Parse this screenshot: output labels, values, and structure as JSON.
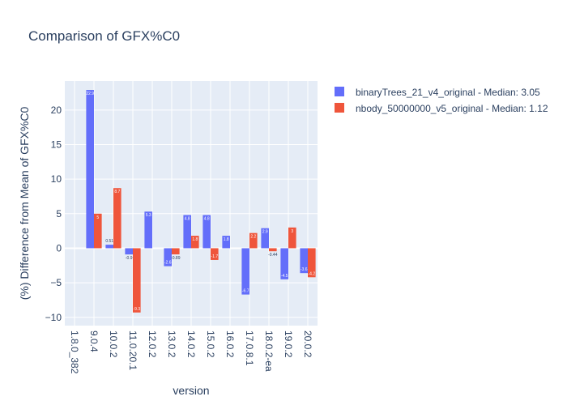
{
  "chart_data": {
    "type": "bar",
    "title": "Comparison of GFX%C0",
    "xlabel": "version",
    "ylabel": "(%) Difference from Mean of GFX%C0",
    "categories": [
      "1.8.0_382",
      "9.0.4",
      "10.0.2",
      "11.0.20.1",
      "12.0.2",
      "13.0.2",
      "14.0.2",
      "15.0.2",
      "16.0.2",
      "17.0.8.1",
      "18.0.2-ea",
      "19.0.2",
      "20.0.2"
    ],
    "ylim": [
      -11.2,
      24.2
    ],
    "yticks": [
      -10,
      -5,
      0,
      5,
      10,
      15,
      20
    ],
    "grid": true,
    "legend_position": "top-right",
    "series": [
      {
        "name": "binaryTrees_21_v4_original - Median: 3.05",
        "color": "#636efa",
        "values": [
          null,
          22.9,
          0.51,
          -0.9,
          5.3,
          -2.6,
          4.8,
          4.8,
          1.8,
          -6.7,
          2.9,
          -4.5,
          -3.6
        ]
      },
      {
        "name": "nbody_50000000_v5_original - Median: 1.12",
        "color": "#ef553b",
        "values": [
          null,
          5.0,
          8.7,
          -9.3,
          null,
          -0.89,
          1.8,
          -1.7,
          null,
          2.2,
          -0.44,
          3.0,
          -4.2
        ]
      }
    ]
  }
}
